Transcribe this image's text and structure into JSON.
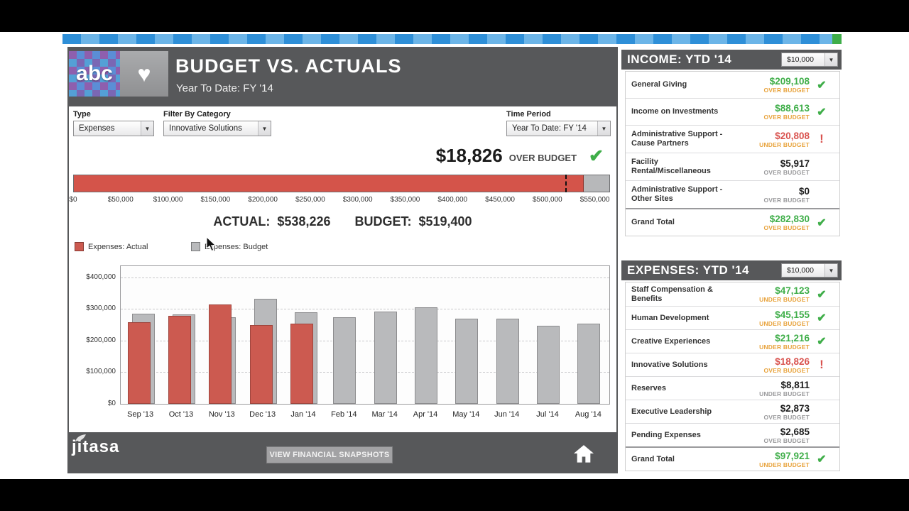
{
  "icons": {
    "heart": "♥",
    "check": "✔",
    "alert": "!",
    "caret": "▼"
  },
  "header": {
    "logo_text": "abc",
    "title": "BUDGET VS. ACTUALS",
    "subtitle": "Year To Date: FY '14"
  },
  "filters": {
    "type_label": "Type",
    "type_value": "Expenses",
    "category_label": "Filter By Category",
    "category_value": "Innovative Solutions",
    "period_label": "Time Period",
    "period_value": "Year To Date: FY '14"
  },
  "summary": {
    "amount": "$18,826",
    "status": "OVER BUDGET",
    "actual_label": "ACTUAL:",
    "actual_value": "$538,226",
    "budget_label": "BUDGET:",
    "budget_value": "$519,400"
  },
  "progress": {
    "actual": 538226,
    "budget": 519400,
    "scale_max": 566000,
    "tick_step": 50000,
    "axis_labels": [
      "$0",
      "$50,000",
      "$100,000",
      "$150,000",
      "$200,000",
      "$250,000",
      "$300,000",
      "$350,000",
      "$400,000",
      "$450,000",
      "$500,000",
      "$550,000"
    ]
  },
  "legend": [
    {
      "label": "Expenses: Actual",
      "color": "#cc5a50"
    },
    {
      "label": "Expenses: Budget",
      "color": "#b9babc"
    }
  ],
  "chart_data": {
    "type": "bar",
    "categories": [
      "Sep '13",
      "Oct '13",
      "Nov '13",
      "Dec '13",
      "Jan '14",
      "Feb '14",
      "Mar '14",
      "Apr '14",
      "May '14",
      "Jun '14",
      "Jul '14",
      "Aug '14"
    ],
    "series": [
      {
        "name": "Expenses: Actual",
        "color": "#cc5a50",
        "border": "#9e453d",
        "values": [
          258000,
          279000,
          315000,
          249000,
          254000,
          null,
          null,
          null,
          null,
          null,
          null,
          null
        ]
      },
      {
        "name": "Expenses: Budget",
        "color": "#b9babc",
        "border": "#8c8c8e",
        "values": [
          285000,
          283000,
          274000,
          331000,
          290000,
          274000,
          292000,
          306000,
          270000,
          270000,
          247000,
          253000
        ]
      }
    ],
    "ylim": [
      0,
      435000
    ],
    "yticks": [
      {
        "label": "$400,000",
        "value": 400000
      },
      {
        "label": "$300,000",
        "value": 300000
      },
      {
        "label": "$200,000",
        "value": 200000
      },
      {
        "label": "$100,000",
        "value": 100000
      },
      {
        "label": "$0",
        "value": 0
      }
    ],
    "legend_position": "top-left",
    "grid": "dashed-horizontal"
  },
  "footer": {
    "brand": "jitasa",
    "button": "VIEW FINANCIAL SNAPSHOTS"
  },
  "income": {
    "title": "INCOME:  YTD '14",
    "dropdown": "$10,000",
    "rows": [
      {
        "name": "General Giving",
        "value": "$209,108",
        "note": "OVER BUDGET",
        "tone": "positive",
        "icon": "check"
      },
      {
        "name": "Income on Investments",
        "value": "$88,613",
        "note": "OVER BUDGET",
        "tone": "positive",
        "icon": "check"
      },
      {
        "name": "Administrative Support - Cause Partners",
        "value": "$20,808",
        "note": "UNDER BUDGET",
        "tone": "negative",
        "icon": "alert"
      },
      {
        "name": "Facility Rental/Miscellaneous",
        "value": "$5,917",
        "note": "OVER BUDGET",
        "tone": "neutral",
        "icon": "none"
      },
      {
        "name": "Administrative Support - Other Sites",
        "value": "$0",
        "note": "OVER BUDGET",
        "tone": "neutral",
        "icon": "none"
      },
      {
        "name": "Grand Total",
        "value": "$282,830",
        "note": "OVER BUDGET",
        "tone": "positive",
        "icon": "check",
        "total": true
      }
    ]
  },
  "expenses": {
    "title": "EXPENSES:  YTD '14",
    "dropdown": "$10,000",
    "rows": [
      {
        "name": "Staff Compensation & Benefits",
        "value": "$47,123",
        "note": "UNDER BUDGET",
        "tone": "positive",
        "icon": "check"
      },
      {
        "name": "Human Development",
        "value": "$45,155",
        "note": "UNDER BUDGET",
        "tone": "positive",
        "icon": "check"
      },
      {
        "name": "Creative Experiences",
        "value": "$21,216",
        "note": "UNDER BUDGET",
        "tone": "positive",
        "icon": "check"
      },
      {
        "name": "Innovative Solutions",
        "value": "$18,826",
        "note": "OVER BUDGET",
        "tone": "negative",
        "icon": "alert"
      },
      {
        "name": "Reserves",
        "value": "$8,811",
        "note": "UNDER BUDGET",
        "tone": "neutral",
        "icon": "none"
      },
      {
        "name": "Executive Leadership",
        "value": "$2,873",
        "note": "OVER BUDGET",
        "tone": "neutral",
        "icon": "none"
      },
      {
        "name": "Pending Expenses",
        "value": "$2,685",
        "note": "OVER BUDGET",
        "tone": "neutral",
        "icon": "none"
      },
      {
        "name": "Grand Total",
        "value": "$97,921",
        "note": "UNDER BUDGET",
        "tone": "positive",
        "icon": "check",
        "total": true
      }
    ]
  }
}
